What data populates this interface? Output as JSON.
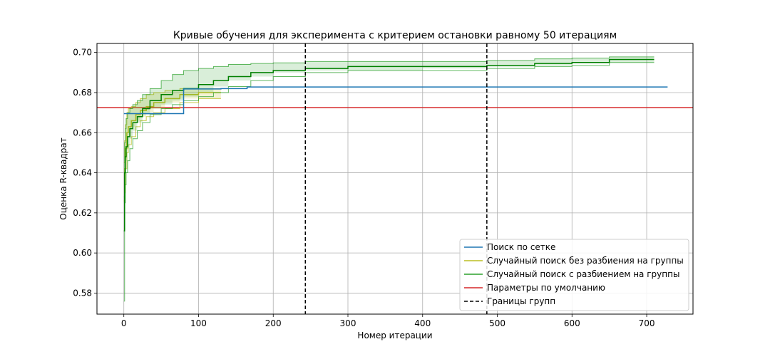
{
  "chart_data": {
    "type": "line",
    "title": "Кривые обучения для эксперимента с критерием остановки равному 50 итерациям",
    "xlabel": "Номер итерации",
    "ylabel": "Оценка R-квадрат",
    "xlim": [
      -36,
      762
    ],
    "ylim": [
      0.5695,
      0.7045
    ],
    "xticks": [
      0,
      100,
      200,
      300,
      400,
      500,
      600,
      700
    ],
    "yticks": [
      0.58,
      0.6,
      0.62,
      0.64,
      0.66,
      0.68,
      0.7
    ],
    "ytick_labels": [
      "0.58",
      "0.60",
      "0.62",
      "0.64",
      "0.66",
      "0.68",
      "0.70"
    ],
    "grid": true,
    "legend_position": "bottom-right",
    "colors": {
      "grid_search": "#1f77b4",
      "random_no_groups": "#bcbd22",
      "random_groups": "#2ca02c",
      "random_groups_mean": "#008000",
      "default_params": "#d62728",
      "group_bounds": "#000000"
    },
    "series": [
      {
        "name": "Поиск по сетке",
        "key": "grid_search",
        "x": [
          0,
          80,
          80,
          130,
          165,
          728
        ],
        "y": [
          0.6695,
          0.6695,
          0.6818,
          0.682,
          0.6828,
          0.6828
        ]
      },
      {
        "name": "Случайный поиск без разбиения на группы",
        "key": "random_no_groups",
        "x": [
          0,
          1,
          2,
          4,
          6,
          10,
          16,
          22,
          30,
          40,
          55,
          75,
          100,
          130
        ],
        "y": [
          0.626,
          0.642,
          0.652,
          0.66,
          0.663,
          0.666,
          0.669,
          0.671,
          0.673,
          0.675,
          0.677,
          0.679,
          0.68,
          0.68
        ],
        "upper": [
          0.645,
          0.656,
          0.664,
          0.67,
          0.672,
          0.673,
          0.675,
          0.677,
          0.679,
          0.68,
          0.681,
          0.682,
          0.682,
          0.682
        ],
        "lower": [
          0.612,
          0.63,
          0.642,
          0.65,
          0.654,
          0.658,
          0.663,
          0.666,
          0.668,
          0.67,
          0.672,
          0.675,
          0.677,
          0.677
        ]
      },
      {
        "name": "Случайный поиск с разбиением на группы",
        "key": "random_groups",
        "x": [
          0,
          1,
          2,
          3,
          5,
          8,
          12,
          18,
          25,
          35,
          50,
          65,
          80,
          100,
          120,
          140,
          170,
          200,
          243,
          300,
          400,
          486,
          550,
          600,
          650,
          710
        ],
        "y": [
          0.611,
          0.64,
          0.648,
          0.653,
          0.658,
          0.662,
          0.665,
          0.668,
          0.672,
          0.676,
          0.679,
          0.681,
          0.682,
          0.684,
          0.686,
          0.688,
          0.69,
          0.691,
          0.692,
          0.693,
          0.693,
          0.6935,
          0.6945,
          0.695,
          0.6965,
          0.6965
        ],
        "upper": [
          0.628,
          0.655,
          0.662,
          0.667,
          0.67,
          0.672,
          0.674,
          0.676,
          0.679,
          0.682,
          0.686,
          0.689,
          0.691,
          0.692,
          0.693,
          0.694,
          0.6945,
          0.6948,
          0.6955,
          0.6955,
          0.6955,
          0.696,
          0.6968,
          0.6972,
          0.6978,
          0.6978
        ],
        "lower": [
          0.576,
          0.625,
          0.634,
          0.64,
          0.646,
          0.652,
          0.657,
          0.661,
          0.665,
          0.669,
          0.672,
          0.674,
          0.676,
          0.678,
          0.68,
          0.683,
          0.686,
          0.688,
          0.69,
          0.691,
          0.691,
          0.692,
          0.693,
          0.6935,
          0.695,
          0.695
        ]
      },
      {
        "name": "Параметры по умолчанию",
        "key": "default_params",
        "hline": 0.6725
      },
      {
        "name": "Границы групп",
        "key": "group_bounds",
        "vlines": [
          243,
          486
        ]
      }
    ]
  }
}
